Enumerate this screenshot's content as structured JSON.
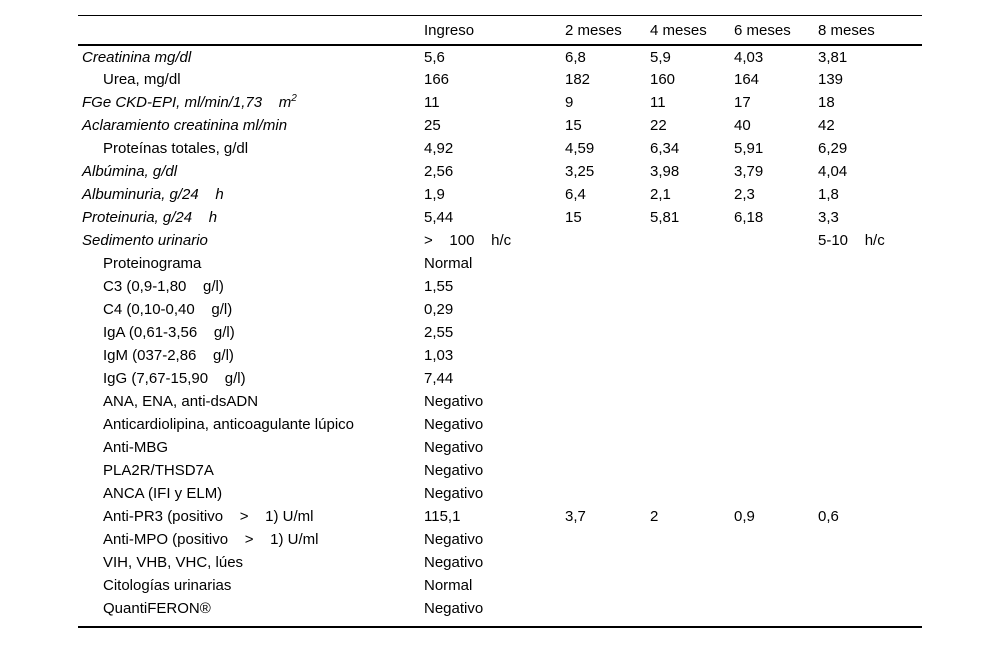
{
  "table": {
    "columns": [
      "",
      "Ingreso",
      "2 meses",
      "4 meses",
      "6 meses",
      "8 meses"
    ],
    "rows": [
      {
        "label": "Creatinina mg/dl",
        "italic": true,
        "indent": false,
        "values": [
          "5,6",
          "6,8",
          "5,9",
          "4,03",
          "3,81"
        ]
      },
      {
        "label": "Urea, mg/dl",
        "italic": false,
        "indent": true,
        "values": [
          "166",
          "182",
          "160",
          "164",
          "139"
        ]
      },
      {
        "label": "FGe CKD-EPI, ml/min/1,73    m",
        "label_sup": "2",
        "italic": true,
        "indent": false,
        "values": [
          "11",
          "9",
          "11",
          "17",
          "18"
        ]
      },
      {
        "label": "Aclaramiento creatinina ml/min",
        "italic": true,
        "indent": false,
        "values": [
          "25",
          "15",
          "22",
          "40",
          "42"
        ]
      },
      {
        "label": "Proteínas totales, g/dl",
        "italic": false,
        "indent": true,
        "values": [
          "4,92",
          "4,59",
          "6,34",
          "5,91",
          "6,29"
        ]
      },
      {
        "label": "Albúmina, g/dl",
        "italic": true,
        "indent": false,
        "values": [
          "2,56",
          "3,25",
          "3,98",
          "3,79",
          "4,04"
        ]
      },
      {
        "label": "Albuminuria, g/24    h",
        "italic": true,
        "indent": false,
        "values": [
          "1,9",
          "6,4",
          "2,1",
          "2,3",
          "1,8"
        ]
      },
      {
        "label": "Proteinuria, g/24    h",
        "italic": true,
        "indent": false,
        "values": [
          "5,44",
          "15",
          "5,81",
          "6,18",
          "3,3"
        ]
      },
      {
        "label": "Sedimento urinario",
        "italic": true,
        "indent": false,
        "values": [
          ">    100    h/c",
          "",
          "",
          "",
          "5-10    h/c"
        ]
      },
      {
        "label": "Proteinograma",
        "italic": false,
        "indent": true,
        "values": [
          "Normal",
          "",
          "",
          "",
          ""
        ]
      },
      {
        "label": "C3 (0,9-1,80    g/l)",
        "italic": false,
        "indent": true,
        "values": [
          "1,55",
          "",
          "",
          "",
          ""
        ]
      },
      {
        "label": "C4 (0,10-0,40    g/l)",
        "italic": false,
        "indent": true,
        "values": [
          "0,29",
          "",
          "",
          "",
          ""
        ]
      },
      {
        "label": "IgA (0,61-3,56    g/l)",
        "italic": false,
        "indent": true,
        "values": [
          "2,55",
          "",
          "",
          "",
          ""
        ]
      },
      {
        "label": "IgM (037-2,86    g/l)",
        "italic": false,
        "indent": true,
        "values": [
          "1,03",
          "",
          "",
          "",
          ""
        ]
      },
      {
        "label": "IgG (7,67-15,90    g/l)",
        "italic": false,
        "indent": true,
        "values": [
          "7,44",
          "",
          "",
          "",
          ""
        ]
      },
      {
        "label": "ANA, ENA, anti-dsADN",
        "italic": false,
        "indent": true,
        "values": [
          "Negativo",
          "",
          "",
          "",
          ""
        ]
      },
      {
        "label": "Anticardiolipina, anticoagulante lúpico",
        "italic": false,
        "indent": true,
        "values": [
          "Negativo",
          "",
          "",
          "",
          ""
        ]
      },
      {
        "label": "Anti-MBG",
        "italic": false,
        "indent": true,
        "values": [
          "Negativo",
          "",
          "",
          "",
          ""
        ]
      },
      {
        "label": "PLA2R/THSD7A",
        "italic": false,
        "indent": true,
        "values": [
          "Negativo",
          "",
          "",
          "",
          ""
        ]
      },
      {
        "label": "ANCA (IFI y ELM)",
        "italic": false,
        "indent": true,
        "values": [
          "Negativo",
          "",
          "",
          "",
          ""
        ]
      },
      {
        "label": "Anti-PR3 (positivo    >    1) U/ml",
        "italic": false,
        "indent": true,
        "values": [
          "115,1",
          "3,7",
          "2",
          "0,9",
          "0,6"
        ]
      },
      {
        "label": "Anti-MPO (positivo    >    1) U/ml",
        "italic": false,
        "indent": true,
        "values": [
          "Negativo",
          "",
          "",
          "",
          ""
        ]
      },
      {
        "label": "VIH, VHB, VHC, lúes",
        "italic": false,
        "indent": true,
        "values": [
          "Negativo",
          "",
          "",
          "",
          ""
        ]
      },
      {
        "label": "Citologías urinarias",
        "italic": false,
        "indent": true,
        "values": [
          "Normal",
          "",
          "",
          "",
          ""
        ]
      },
      {
        "label": "QuantiFERON®",
        "italic": false,
        "indent": true,
        "values": [
          "Negativo",
          "",
          "",
          "",
          ""
        ]
      }
    ]
  },
  "colors": {
    "text": "#000000",
    "background": "#ffffff",
    "rule": "#000000"
  }
}
